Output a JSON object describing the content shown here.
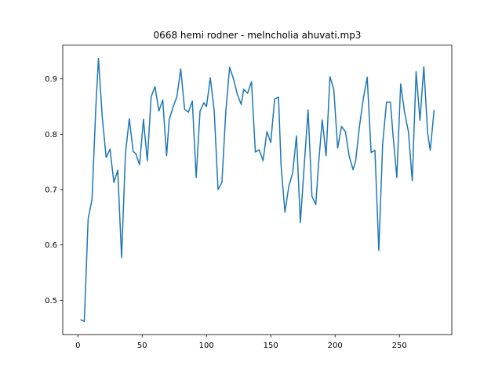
{
  "chart_data": {
    "type": "line",
    "title": "0668 hemi rodner - melncholia ahuvati.mp3",
    "x": [
      2,
      5,
      8,
      11,
      14,
      16,
      19,
      22,
      25,
      28,
      31,
      34,
      37,
      40,
      43,
      45,
      48,
      51,
      54,
      57,
      60,
      63,
      66,
      69,
      71,
      74,
      77,
      80,
      83,
      86,
      89,
      92,
      95,
      98,
      100,
      103,
      106,
      109,
      112,
      115,
      118,
      121,
      124,
      127,
      129,
      132,
      135,
      138,
      141,
      144,
      147,
      150,
      153,
      156,
      158,
      161,
      164,
      167,
      170,
      173,
      176,
      179,
      182,
      185,
      187,
      190,
      193,
      196,
      199,
      202,
      205,
      208,
      211,
      214,
      216,
      219,
      222,
      225,
      228,
      231,
      234,
      237,
      240,
      243,
      245,
      248,
      251,
      254,
      257,
      260,
      263,
      266,
      269,
      272,
      274,
      277
    ],
    "series": [
      {
        "color": "#1f77b4",
        "values": [
          0.465,
          0.462,
          0.647,
          0.682,
          0.85,
          0.937,
          0.83,
          0.758,
          0.773,
          0.713,
          0.735,
          0.577,
          0.765,
          0.828,
          0.769,
          0.765,
          0.745,
          0.827,
          0.752,
          0.868,
          0.886,
          0.842,
          0.862,
          0.761,
          0.826,
          0.849,
          0.868,
          0.918,
          0.845,
          0.84,
          0.86,
          0.722,
          0.842,
          0.857,
          0.85,
          0.902,
          0.843,
          0.7,
          0.713,
          0.84,
          0.921,
          0.9,
          0.872,
          0.854,
          0.881,
          0.874,
          0.895,
          0.768,
          0.772,
          0.752,
          0.805,
          0.785,
          0.864,
          0.867,
          0.744,
          0.659,
          0.706,
          0.73,
          0.797,
          0.64,
          0.743,
          0.844,
          0.688,
          0.673,
          0.742,
          0.826,
          0.761,
          0.904,
          0.881,
          0.775,
          0.814,
          0.805,
          0.76,
          0.736,
          0.752,
          0.815,
          0.865,
          0.903,
          0.767,
          0.771,
          0.59,
          0.783,
          0.858,
          0.858,
          0.8,
          0.722,
          0.891,
          0.84,
          0.805,
          0.716,
          0.913,
          0.825,
          0.922,
          0.801,
          0.771,
          0.844
        ]
      }
    ],
    "xlim": [
      -11.75,
      290.75
    ],
    "xticks": [
      0,
      50,
      100,
      150,
      200,
      250
    ],
    "ylim": [
      0.438,
      0.961
    ],
    "yticks": [
      0.5,
      0.6,
      0.7,
      0.8,
      0.9
    ]
  }
}
